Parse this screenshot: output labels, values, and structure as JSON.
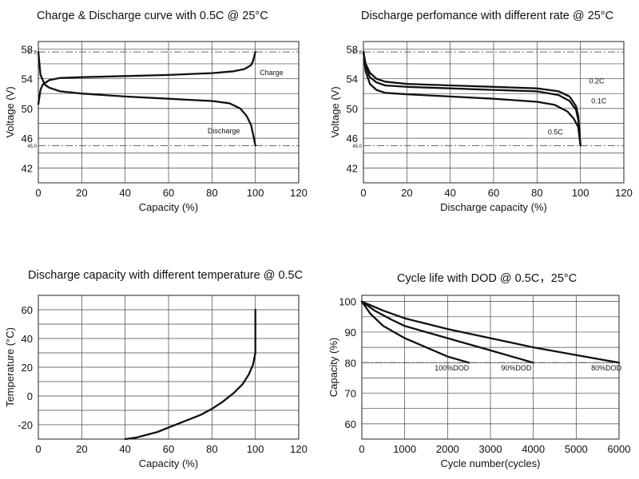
{
  "chart_data": [
    {
      "type": "line",
      "title": "Charge & Discharge curve with 0.5C @ 25°C",
      "xlabel": "Capacity (%)",
      "ylabel": "Voltage (V)",
      "xlim": [
        0,
        120
      ],
      "ylim": [
        40,
        59
      ],
      "xticks": [
        "0",
        "20",
        "40",
        "60",
        "80",
        "100",
        "120"
      ],
      "xtick_values": [
        0,
        20,
        40,
        60,
        80,
        100,
        120
      ],
      "yticks": [
        "42",
        "46",
        "50",
        "54",
        "58"
      ],
      "ytick_values": [
        42,
        46,
        50,
        54,
        58
      ],
      "hlines": [
        57.6,
        45.0
      ],
      "hline_labels": [
        "57.6",
        "45.0"
      ],
      "grid": true,
      "series": [
        {
          "name": "Charge",
          "label_at": [
            102,
            54.8
          ],
          "x": [
            0,
            1,
            2,
            5,
            10,
            20,
            40,
            60,
            80,
            90,
            95,
            98,
            99,
            99.5,
            100
          ],
          "y": [
            50.6,
            52.5,
            53.2,
            53.8,
            54.1,
            54.2,
            54.35,
            54.5,
            54.75,
            55.0,
            55.3,
            55.8,
            56.4,
            57.0,
            57.6
          ]
        },
        {
          "name": "Discharge",
          "label_at": [
            78,
            47.0
          ],
          "x": [
            0,
            0.5,
            1,
            3,
            5,
            10,
            20,
            40,
            60,
            80,
            88,
            93,
            96,
            98,
            99,
            100
          ],
          "y": [
            57.6,
            56.0,
            54.5,
            53.2,
            52.8,
            52.3,
            52.0,
            51.6,
            51.3,
            51.0,
            50.7,
            50.0,
            49.0,
            47.8,
            46.5,
            45.0
          ]
        }
      ]
    },
    {
      "type": "line",
      "title": "Discharge perfomance with different rate @ 25°C",
      "xlabel": "Discharge capacity (%)",
      "ylabel": "Voltage (V)",
      "xlim": [
        0,
        120
      ],
      "ylim": [
        40,
        59
      ],
      "xticks": [
        "0",
        "20",
        "40",
        "60",
        "80",
        "100",
        "120"
      ],
      "xtick_values": [
        0,
        20,
        40,
        60,
        80,
        100,
        120
      ],
      "yticks": [
        "42",
        "46",
        "50",
        "54",
        "58"
      ],
      "ytick_values": [
        42,
        46,
        50,
        54,
        58
      ],
      "hlines": [
        57.6,
        45.0
      ],
      "hline_labels": [
        "57.6",
        "45.0"
      ],
      "grid": true,
      "series": [
        {
          "name": "0.2C",
          "label_at": [
            104,
            53.7
          ],
          "x": [
            0,
            1,
            3,
            6,
            10,
            20,
            40,
            60,
            80,
            90,
            95,
            98,
            99,
            100
          ],
          "y": [
            57.6,
            56.0,
            54.8,
            54.0,
            53.6,
            53.3,
            53.1,
            52.9,
            52.7,
            52.3,
            51.6,
            50.3,
            49.0,
            45.0
          ]
        },
        {
          "name": "0.1C",
          "label_at": [
            105,
            51.0
          ],
          "x": [
            0,
            1,
            3,
            6,
            10,
            20,
            40,
            60,
            80,
            90,
            95,
            98,
            99,
            100
          ],
          "y": [
            57.6,
            55.7,
            54.2,
            53.5,
            53.1,
            52.9,
            52.7,
            52.5,
            52.3,
            51.8,
            51.0,
            49.8,
            48.5,
            45.0
          ]
        },
        {
          "name": "0.5C",
          "label_at": [
            85,
            46.8
          ],
          "x": [
            0,
            1,
            3,
            6,
            10,
            20,
            40,
            60,
            80,
            88,
            94,
            97,
            99,
            100
          ],
          "y": [
            57.6,
            55.0,
            53.3,
            52.5,
            52.1,
            51.9,
            51.6,
            51.3,
            50.9,
            50.5,
            49.6,
            48.6,
            47.5,
            45.0
          ]
        }
      ]
    },
    {
      "type": "line",
      "title": "Discharge capacity with different temperature @ 0.5C",
      "xlabel": "Capacity (%)",
      "ylabel": "Temperature (°C)",
      "xlim": [
        0,
        120
      ],
      "ylim": [
        -30,
        70
      ],
      "xticks": [
        "0",
        "20",
        "40",
        "60",
        "80",
        "100",
        "120"
      ],
      "xtick_values": [
        0,
        20,
        40,
        60,
        80,
        100,
        120
      ],
      "yticks": [
        "-20",
        "0",
        "20",
        "40",
        "60"
      ],
      "ytick_values": [
        -20,
        0,
        20,
        40,
        60
      ],
      "hlines": [],
      "grid": true,
      "series": [
        {
          "name": "Temperature",
          "x": [
            40,
            45,
            50,
            55,
            60,
            65,
            70,
            75,
            80,
            85,
            90,
            94,
            97,
            99,
            100,
            100
          ],
          "y": [
            -30,
            -29,
            -27,
            -25,
            -22,
            -19,
            -16,
            -13,
            -9,
            -4,
            2,
            8,
            15,
            22,
            30,
            60
          ]
        }
      ]
    },
    {
      "type": "line",
      "title": "Cycle life with DOD @ 0.5C，25°C",
      "xlabel": "Cycle number(cycles)",
      "ylabel": "Capacity (%)",
      "xlim": [
        0,
        6000
      ],
      "ylim": [
        55,
        102
      ],
      "xticks": [
        "0",
        "1000",
        "2000",
        "3000",
        "4000",
        "5000",
        "6000"
      ],
      "xtick_values": [
        0,
        1000,
        2000,
        3000,
        4000,
        5000,
        6000
      ],
      "yticks": [
        "60",
        "70",
        "80",
        "90",
        "100"
      ],
      "ytick_values": [
        60,
        70,
        80,
        90,
        100
      ],
      "hlines": [
        80
      ],
      "grid": true,
      "series": [
        {
          "name": "100%DOD",
          "label_at": [
            1700,
            78.3
          ],
          "x": [
            0,
            200,
            500,
            1000,
            1500,
            2000,
            2500
          ],
          "y": [
            100,
            96,
            92,
            88,
            85,
            82,
            80
          ]
        },
        {
          "name": "90%DOD",
          "label_at": [
            3250,
            78.3
          ],
          "x": [
            0,
            300,
            700,
            1000,
            2000,
            3000,
            4000
          ],
          "y": [
            100,
            97,
            94,
            92,
            88,
            84,
            80
          ]
        },
        {
          "name": "80%DOD",
          "label_at": [
            5350,
            78.3
          ],
          "x": [
            0,
            500,
            1000,
            2000,
            3000,
            4000,
            5000,
            6000
          ],
          "y": [
            100,
            97,
            94.5,
            91,
            88,
            85,
            82.5,
            80
          ]
        }
      ]
    }
  ]
}
